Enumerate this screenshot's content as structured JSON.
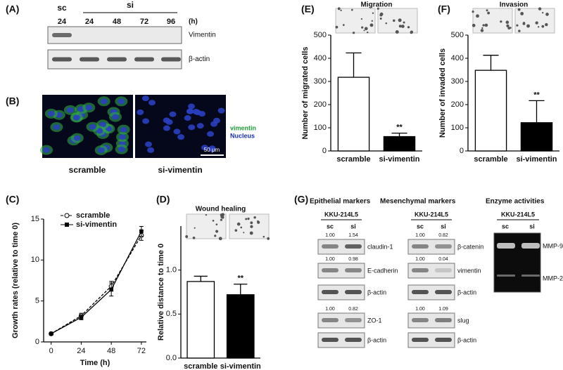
{
  "chart_data": [
    {
      "type": "line",
      "label": "(C)",
      "ylabel": "Growth rates (relative to time 0)",
      "xlabel": "Time (h)",
      "x": [
        0,
        24,
        48,
        72
      ],
      "xlim": [
        -6,
        76
      ],
      "xticks": [
        0,
        24,
        48,
        72
      ],
      "ylim": [
        0,
        15
      ],
      "yticks": [
        0,
        5,
        10,
        15
      ],
      "series": [
        {
          "name": "scramble",
          "color": "#000000",
          "dashed": true,
          "marker": "open-circle",
          "values": [
            1,
            3.2,
            6.8,
            13.0
          ],
          "errors": [
            0.1,
            0.3,
            0.6,
            0.6
          ]
        },
        {
          "name": "si-vimentin",
          "color": "#000000",
          "dashed": false,
          "marker": "square",
          "values": [
            1,
            3.0,
            6.4,
            13.5
          ],
          "errors": [
            0.1,
            0.3,
            0.8,
            0.6
          ]
        }
      ]
    },
    {
      "type": "bar",
      "label": "(D)",
      "title": "Wound healing",
      "ylabel": "Relative distance to time 0",
      "categories": [
        "scramble",
        "si-vimentin"
      ],
      "values": [
        0.87,
        0.72
      ],
      "errors": [
        0.06,
        0.12
      ],
      "colors": [
        "#ffffff",
        "#000000"
      ],
      "ylim": [
        0,
        1.5
      ],
      "yticks": [
        {
          "value": 0,
          "label": "0.0"
        },
        {
          "value": 0.5,
          "label": "0.5"
        },
        {
          "value": 1,
          "label": "1.0"
        }
      ],
      "annotation": "**"
    },
    {
      "type": "bar",
      "label": "(E)",
      "title": "Migration",
      "ylabel": "Number of migrated cells",
      "categories": [
        "scramble",
        "si-vimentin"
      ],
      "values": [
        318,
        62
      ],
      "errors": [
        105,
        15
      ],
      "colors": [
        "#ffffff",
        "#000000"
      ],
      "ylim": [
        0,
        500
      ],
      "yticks": [
        0,
        100,
        200,
        300,
        400,
        500
      ],
      "annotation": "**"
    },
    {
      "type": "bar",
      "label": "(F)",
      "title": "Invasion",
      "ylabel": "Number of invaded cells",
      "categories": [
        "scramble",
        "si-vimentin"
      ],
      "values": [
        348,
        122
      ],
      "errors": [
        65,
        95
      ],
      "colors": [
        "#ffffff",
        "#000000"
      ],
      "ylim": [
        0,
        500
      ],
      "yticks": [
        0,
        100,
        200,
        300,
        400,
        500
      ],
      "annotation": "**"
    }
  ],
  "panel_a": {
    "label": "(A)",
    "groups": [
      "sc",
      "si"
    ],
    "times": [
      "24",
      "24",
      "48",
      "72",
      "96"
    ],
    "unit": "(h)",
    "rows": [
      "Vimentin",
      "β-actin"
    ]
  },
  "panel_b": {
    "label": "(B)",
    "channels": [
      "vimentin",
      "Nucleus"
    ],
    "scale": "50 μm",
    "images": [
      "scramble",
      "si-vimentin"
    ]
  },
  "panel_g": {
    "label": "(G)",
    "groups": [
      {
        "title": "Epithelial markers",
        "cell_line": "KKU-214L5",
        "lanes": [
          "sc",
          "si"
        ],
        "rows": [
          {
            "name": "claudin-1",
            "ratios": [
              "1.00",
              "1.54"
            ]
          },
          {
            "name": "E-cadherin",
            "ratios": [
              "1.00",
              "0.98"
            ]
          },
          {
            "name": "β-actin"
          },
          {
            "name": "ZO-1",
            "ratios": [
              "1.00",
              "0.82"
            ]
          },
          {
            "name": "β-actin"
          }
        ]
      },
      {
        "title": "Mesenchymal markers",
        "cell_line": "KKU-214L5",
        "lanes": [
          "sc",
          "si"
        ],
        "rows": [
          {
            "name": "β-catenin",
            "ratios": [
              "1.00",
              "0.82"
            ]
          },
          {
            "name": "vimentin",
            "ratios": [
              "1.00",
              "0.04"
            ]
          },
          {
            "name": "β-actin"
          },
          {
            "name": "slug",
            "ratios": [
              "1.00",
              "1.09"
            ]
          },
          {
            "name": "β-actin"
          }
        ]
      }
    ],
    "enzyme": {
      "title": "Enzyme activities",
      "cell_line": "KKU-214L5",
      "lanes": [
        "sc",
        "si"
      ],
      "bands": [
        "MMP-9",
        "MMP-2"
      ]
    }
  }
}
